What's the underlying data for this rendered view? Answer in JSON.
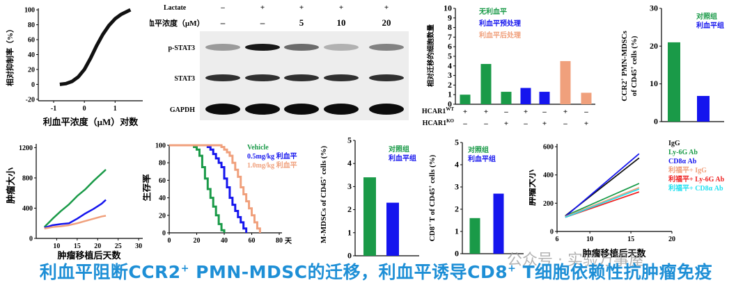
{
  "colors": {
    "green": "#1a9a48",
    "blue": "#1515ee",
    "salmon": "#f0a07c",
    "red": "#ee2222",
    "cyan": "#22e0f0",
    "black": "#111111",
    "caption": "#1e8fd6"
  },
  "caption": {
    "part1": "利血平阻断CCR2",
    "sup1": "+",
    "part2": " PMN-MDSC的迁移，利血平诱导CD8",
    "sup2": "+",
    "part3": " T细胞依赖性抗肿瘤免疫"
  },
  "watermark": "公众号 · 实验万事屋",
  "chart_data": [
    {
      "id": "dose_response",
      "type": "line",
      "ylabel": "相对抑制率（%）",
      "xlabel": "利血平浓度（μM）对数",
      "xticks": [
        -1,
        0,
        1
      ],
      "yticks": [
        -20,
        0,
        20,
        40,
        60,
        80,
        100
      ],
      "xlim": [
        -1.5,
        1.9
      ],
      "ylim": [
        -22,
        102
      ],
      "series": [
        {
          "x": [
            -0.8,
            -0.6,
            -0.4,
            -0.2,
            0,
            0.2,
            0.4,
            0.6,
            0.8,
            1.0,
            1.2,
            1.4,
            1.5
          ],
          "y": [
            0,
            1,
            4,
            10,
            20,
            35,
            52,
            67,
            79,
            88,
            94,
            98,
            100
          ]
        }
      ]
    },
    {
      "id": "western_blot",
      "type": "table",
      "row1_label": "Lactate",
      "row1_values": [
        "–",
        "+",
        "+",
        "+",
        "+"
      ],
      "row2_label": "利血平浓度（μM）",
      "row2_values": [
        "–",
        "–",
        "5",
        "10",
        "20"
      ],
      "bands": [
        "p-STAT3",
        "STAT3",
        "GAPDH"
      ],
      "intensity": {
        "p-STAT3": [
          0.35,
          0.9,
          0.55,
          0.25,
          0.45
        ],
        "STAT3": [
          0.8,
          0.8,
          0.8,
          0.8,
          0.8
        ],
        "GAPDH": [
          0.95,
          0.95,
          0.95,
          0.95,
          0.95
        ]
      }
    },
    {
      "id": "migration",
      "type": "bar",
      "ylabel": "相对迁移的细胞数量",
      "yticks": [
        0,
        1,
        2,
        3,
        4,
        5,
        6,
        7,
        8,
        9,
        10
      ],
      "ylim": [
        0,
        10
      ],
      "legend": [
        "无利血平",
        "利血平预处理",
        "利血平后处理"
      ],
      "legend_colors": [
        "green",
        "blue",
        "salmon"
      ],
      "row1_label": "HCAR1",
      "row1_sup": "WT",
      "row1_values": [
        "+",
        "+",
        "–",
        "+",
        "–",
        "+",
        "–"
      ],
      "row2_label": "HCAR1",
      "row2_sup": "KO",
      "row2_values": [
        "–",
        "–",
        "+",
        "–",
        "+",
        "–",
        "+"
      ],
      "values": [
        1.0,
        4.2,
        1.3,
        1.7,
        1.3,
        4.5,
        1.2
      ],
      "bar_colors": [
        "green",
        "green",
        "green",
        "blue",
        "blue",
        "salmon",
        "salmon"
      ]
    },
    {
      "id": "ccr2_pmn",
      "type": "bar",
      "ylabel_line1": "CCR2",
      "ylabel_sup": "+",
      "ylabel_mid": " PMN-MDSCs",
      "ylabel_line2": "of CD45",
      "ylabel_sup2": "+",
      "ylabel_end": " cells (%)",
      "yticks": [
        0,
        10,
        20,
        30
      ],
      "ylim": [
        0,
        30
      ],
      "legend": [
        "对照组",
        "利血平组"
      ],
      "legend_colors": [
        "green",
        "blue"
      ],
      "values": [
        21,
        6.8
      ],
      "bar_colors": [
        "green",
        "blue"
      ]
    },
    {
      "id": "tumor_growth_1",
      "type": "line",
      "ylabel": "肿瘤大小",
      "xlabel": "肿瘤移植后天数",
      "xticks": [
        10,
        15,
        20,
        25,
        30
      ],
      "yticks": [
        0,
        400,
        800,
        1200
      ],
      "xlim": [
        5,
        31
      ],
      "ylim": [
        0,
        1250
      ],
      "series": [
        {
          "color": "green",
          "x": [
            7,
            9,
            11,
            13,
            15,
            17,
            19,
            21,
            22
          ],
          "y": [
            150,
            260,
            360,
            450,
            560,
            650,
            760,
            860,
            910
          ]
        },
        {
          "color": "blue",
          "x": [
            7,
            9,
            11,
            13,
            15,
            17,
            19,
            21,
            22
          ],
          "y": [
            140,
            175,
            190,
            200,
            260,
            330,
            390,
            460,
            510
          ]
        },
        {
          "color": "salmon",
          "x": [
            7,
            9,
            11,
            13,
            15,
            17,
            19,
            21,
            22
          ],
          "y": [
            130,
            150,
            160,
            175,
            200,
            230,
            260,
            290,
            300
          ]
        }
      ]
    },
    {
      "id": "survival",
      "type": "line",
      "ylabel": "生存率",
      "xaxis_suffix": "天",
      "xticks": [
        0,
        20,
        40,
        60,
        80
      ],
      "yticks": [
        0,
        20,
        40,
        60,
        80,
        100
      ],
      "xlim": [
        0,
        82
      ],
      "ylim": [
        0,
        100
      ],
      "legend": [
        "Vehicle",
        "0.5mg/kg 利血平",
        "1.0mg/kg 利血平"
      ],
      "legend_colors": [
        "green",
        "blue",
        "salmon"
      ],
      "series": [
        {
          "color": "green",
          "x": [
            0,
            18,
            20,
            22,
            24,
            26,
            28,
            30,
            32,
            34,
            36,
            38,
            40
          ],
          "y": [
            100,
            98,
            95,
            88,
            75,
            62,
            50,
            40,
            30,
            20,
            10,
            3,
            0
          ]
        },
        {
          "color": "blue",
          "x": [
            0,
            28,
            30,
            32,
            34,
            36,
            38,
            40,
            42,
            44,
            46,
            48,
            50,
            52,
            54,
            56
          ],
          "y": [
            100,
            98,
            95,
            90,
            85,
            80,
            75,
            62,
            52,
            40,
            32,
            25,
            18,
            12,
            5,
            0
          ]
        },
        {
          "color": "salmon",
          "x": [
            0,
            36,
            38,
            40,
            42,
            44,
            46,
            48,
            50,
            52,
            54,
            56,
            58,
            60,
            62,
            64,
            66
          ],
          "y": [
            100,
            100,
            98,
            95,
            92,
            88,
            80,
            72,
            64,
            52,
            44,
            36,
            28,
            20,
            12,
            5,
            0
          ]
        }
      ]
    },
    {
      "id": "m_mdsc",
      "type": "bar",
      "ylabel_a": "M-MDSCs of CD45",
      "ylabel_sup": "+",
      "ylabel_b": " cells (%)",
      "yticks": [
        0,
        1,
        2,
        3,
        4,
        5
      ],
      "ylim": [
        0,
        5
      ],
      "legend": [
        "对照组",
        "利血平组"
      ],
      "legend_colors": [
        "green",
        "blue"
      ],
      "values": [
        3.4,
        2.3
      ],
      "bar_colors": [
        "green",
        "blue"
      ]
    },
    {
      "id": "cd8",
      "type": "bar",
      "ylabel_a": "CD8",
      "ylabel_sup1": "+",
      "ylabel_b": " T of CD45",
      "ylabel_sup2": "+",
      "ylabel_c": " cells (%)",
      "yticks": [
        0,
        1,
        2,
        3,
        4,
        5
      ],
      "ylim": [
        0,
        5
      ],
      "legend": [
        "对照组",
        "利血平组"
      ],
      "legend_colors": [
        "green",
        "blue"
      ],
      "values": [
        1.6,
        2.7
      ],
      "bar_colors": [
        "green",
        "blue"
      ]
    },
    {
      "id": "tumor_growth_2",
      "type": "line",
      "ylabel": "肿瘤大小",
      "xlabel": "肿瘤移植后天数",
      "xticks": [
        6,
        10,
        15,
        20
      ],
      "yticks": [
        0,
        200,
        400,
        600
      ],
      "xlim": [
        6,
        20
      ],
      "ylim": [
        0,
        620
      ],
      "legend": [
        "IgG",
        "Ly-6G Ab",
        "CD8α Ab",
        "利福平+ IgG",
        "利福平+ Ly-6G Ab",
        "利福平+ CD8α Ab"
      ],
      "legend_colors": [
        "black",
        "green",
        "blue",
        "salmon",
        "red",
        "cyan"
      ],
      "series": [
        {
          "color": "black",
          "x": [
            7,
            16
          ],
          "y": [
            110,
            520
          ]
        },
        {
          "color": "green",
          "x": [
            7,
            16
          ],
          "y": [
            110,
            340
          ]
        },
        {
          "color": "blue",
          "x": [
            7,
            16
          ],
          "y": [
            105,
            550
          ]
        },
        {
          "color": "salmon",
          "x": [
            7,
            16
          ],
          "y": [
            105,
            310
          ]
        },
        {
          "color": "red",
          "x": [
            7,
            16
          ],
          "y": [
            100,
            280
          ]
        },
        {
          "color": "cyan",
          "x": [
            7,
            16
          ],
          "y": [
            100,
            300
          ]
        }
      ]
    }
  ]
}
